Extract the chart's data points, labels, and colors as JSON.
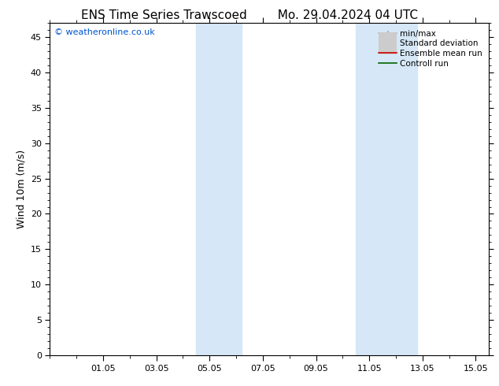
{
  "title_left": "ENS Time Series Trawscoed",
  "title_right": "Mo. 29.04.2024 04 UTC",
  "ylabel": "Wind 10m (m/s)",
  "watermark": "© weatheronline.co.uk",
  "watermark_color": "#0055cc",
  "background_color": "#ffffff",
  "plot_bg_color": "#ffffff",
  "xmin": 29.0,
  "xmax": 45.5,
  "ymin": 0,
  "ymax": 47,
  "yticks": [
    0,
    5,
    10,
    15,
    20,
    25,
    30,
    35,
    40,
    45
  ],
  "xtick_labels": [
    "01.05",
    "03.05",
    "05.05",
    "07.05",
    "09.05",
    "11.05",
    "13.05",
    "15.05"
  ],
  "xtick_positions": [
    31,
    33,
    35,
    37,
    39,
    41,
    43,
    45
  ],
  "shaded_bands": [
    {
      "xmin": 34.5,
      "xmax": 36.2,
      "color": "#d6e8f7"
    },
    {
      "xmin": 40.5,
      "xmax": 42.8,
      "color": "#d6e8f7"
    }
  ],
  "legend_items": [
    {
      "label": "min/max",
      "color": "#aaaaaa",
      "lw": 1.2,
      "style": "line_with_caps"
    },
    {
      "label": "Standard deviation",
      "color": "#cccccc",
      "lw": 5,
      "style": "thick"
    },
    {
      "label": "Ensemble mean run",
      "color": "#cc0000",
      "lw": 1.2,
      "style": "line"
    },
    {
      "label": "Controll run",
      "color": "#006600",
      "lw": 1.2,
      "style": "line"
    }
  ],
  "title_fontsize": 11,
  "axis_fontsize": 9,
  "tick_fontsize": 8,
  "legend_fontsize": 7.5,
  "font_family": "DejaVu Sans"
}
